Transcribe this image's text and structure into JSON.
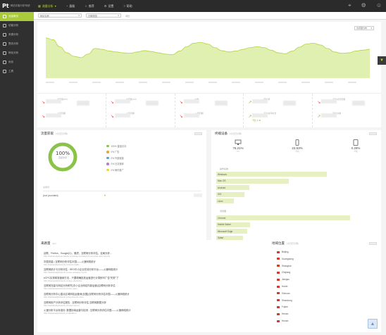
{
  "brand": {
    "mark": "Pt",
    "text": "网站访客分析系统"
  },
  "topnav": [
    {
      "label": "流量分析",
      "icon": "bar-chart-icon",
      "active": true
    },
    {
      "label": "蛋糕",
      "icon": "pie-icon"
    },
    {
      "label": "推荐",
      "icon": "star-icon"
    },
    {
      "label": "设置",
      "icon": "gear-icon"
    },
    {
      "label": "帮助",
      "icon": "help-icon"
    }
  ],
  "sidebar": [
    {
      "label": "流量概况",
      "icon": "overview-icon",
      "active": true
    },
    {
      "label": "访客分析",
      "icon": "visitor-icon"
    },
    {
      "label": "来源分析",
      "icon": "source-icon"
    },
    {
      "label": "受访分析",
      "icon": "page-icon"
    },
    {
      "label": "转化分析",
      "icon": "conversion-icon"
    },
    {
      "label": "优化",
      "icon": "optimize-icon"
    },
    {
      "label": "工具",
      "icon": "tool-icon"
    }
  ],
  "toolbar": {
    "site": "网站名称",
    "date": "日期范围",
    "compare": "对比"
  },
  "chart": {
    "select_label": "访问量分布",
    "colors": {
      "fill": "#dff0b0",
      "line": "#b4d33f"
    }
  },
  "chart_data": {
    "type": "area",
    "series": [
      {
        "values": [
          92,
          88,
          72,
          58,
          50,
          47,
          55,
          68,
          66,
          62,
          60,
          58,
          57,
          60,
          63,
          61,
          58,
          55,
          54,
          62,
          72,
          80,
          82,
          78,
          70,
          63,
          60,
          62,
          66,
          70,
          72,
          70,
          64,
          58,
          56,
          62,
          71,
          78,
          80,
          76,
          68,
          60,
          57,
          58,
          62,
          64,
          66
        ]
      }
    ]
  },
  "stats": [
    {
      "label1": "浏览量(PV)",
      "trend1": "down",
      "label2": "上周同期"
    },
    {
      "label1": "访客数(UV)",
      "trend1": "down",
      "label2": "上周同期"
    },
    {
      "label1": "IP数",
      "trend1": "down",
      "label2": "上周同期"
    },
    {
      "label1": "跳出率",
      "trend1": "up",
      "label2": "平均访问时长",
      "sub": "环比 6.49"
    },
    {
      "label1": "平均访问页数",
      "trend1": "down",
      "label2": "转化次数"
    }
  ],
  "traffic": {
    "title": "流量获取",
    "subtitle": "(今日已计算)",
    "pct": "100%",
    "pct_sub": "直接访问",
    "legend": [
      {
        "label": "100% 直接访问",
        "color": "#8bc34a"
      },
      {
        "label": "0% 广告",
        "color": "#e8a43c"
      },
      {
        "label": "0% 外部链接",
        "color": "#4aa3df"
      },
      {
        "label": "0% 社交媒体",
        "color": "#b07fd0"
      },
      {
        "label": "0% 邮件推广",
        "color": "#e5d73b"
      }
    ],
    "section": "关键词",
    "keyword": "(not provided)"
  },
  "devices": {
    "title": "终端设备",
    "subtitle": "(今日已计算)",
    "items": [
      {
        "name": "PC",
        "pct": "76.21%",
        "icon": "desktop-icon"
      },
      {
        "name": "手机",
        "pct": "23.53%",
        "icon": "phone-icon"
      },
      {
        "name": "平板",
        "pct": "0.26%",
        "icon": "tablet-icon"
      }
    ],
    "os_title": "操作系统",
    "os": [
      {
        "name": "Windows",
        "value": 76
      },
      {
        "name": "Mac OS",
        "value": 46
      },
      {
        "name": "Android",
        "value": 15
      },
      {
        "name": "iOS",
        "value": 11
      },
      {
        "name": "Linux",
        "value": 3
      }
    ],
    "browser_title": "浏览器",
    "browsers": [
      {
        "name": "Chrome",
        "value": 85
      },
      {
        "name": "Mobile Safari",
        "value": 14
      },
      {
        "name": "Microsoft Edge",
        "value": 12
      },
      {
        "name": "Safari",
        "value": 9
      },
      {
        "name": "Firefox",
        "value": 8
      }
    ]
  },
  "referrals": {
    "title": "来路量",
    "subtitle": "(pv)",
    "items": [
      {
        "title": "谷歌、Firefox、Google(C)、雅虎、互联网分析评估、全局分析…",
        "url": "http://webanalyticsandstats.cn/category/analytics-overview-and-reports"
      },
      {
        "title": "中国流量 | 互联网分析评估中国——火速网络统计",
        "url": "http://webanalyticstools.cn/tools-traffic"
      },
      {
        "title": "互联网统计与分析评估 - SEO中小企业在线分析平台——火速网络统计",
        "url": "http://webanalyticstools.cn/seo-strategy-report"
      },
      {
        "title": "eCPC实现精准营销方法，只要精确投放运营进行计算即可广告\"失败\"了",
        "url": "http://webanalyticstools.cn/seo-plan/ecpc"
      },
      {
        "title": "互联网流量与网站分析研究(中小企业网站内部运营)|互联网分析评估",
        "url": "http://webanalyticstools.cn/seo-plan"
      },
      {
        "title": "互联网分析中心重点区域网站运营深(全国)|互联网分析评估中国——火速网络统计",
        "url": "http://webanalyticstools.cn/seo/report-zone"
      },
      {
        "title": "互联网用户分析评估报告 - 互联网分析评估 互联网数据分析",
        "url": "http://webanalyticstools.cn/user-report"
      },
      {
        "title": "火速分析平台标准化: 数据持续运营与检测 - 互联网分析评估中国——火速网络统计",
        "url": "http://webanalyticstools.cn/platform"
      }
    ]
  },
  "locations": {
    "title": "地域位置",
    "subtitle": "(今日已计算)",
    "items": [
      "Beijing",
      "Guangdong",
      "Shanghai",
      "Zhejiang",
      "Jiangsu",
      "Hubei",
      "Sichuan",
      "Shandong",
      "Fujian",
      "Henan",
      "Hunan"
    ]
  }
}
